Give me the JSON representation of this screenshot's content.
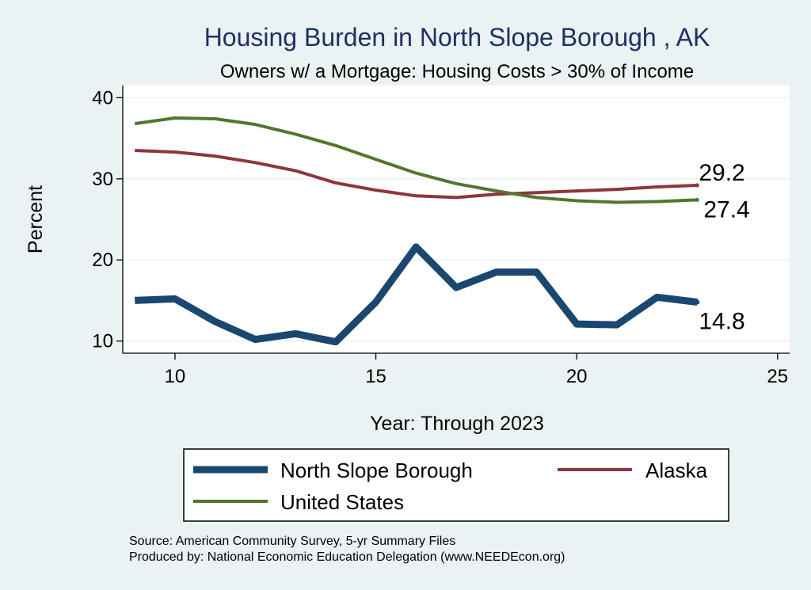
{
  "chart_data": {
    "type": "line",
    "title": "Housing Burden in North Slope Borough , AK",
    "subtitle": "Owners w/ a Mortgage: Housing Costs > 30% of Income",
    "xlabel": "Year: Through 2023",
    "ylabel": "Percent",
    "xlim": [
      8.7,
      25.3
    ],
    "ylim": [
      8.5,
      41.5
    ],
    "x_ticks": [
      10,
      15,
      20,
      25
    ],
    "y_ticks": [
      10,
      20,
      30,
      40
    ],
    "grid": true,
    "legend_position": "bottom",
    "x": [
      9,
      10,
      11,
      12,
      13,
      14,
      15,
      16,
      17,
      18,
      19,
      20,
      21,
      22,
      23
    ],
    "series": [
      {
        "name": "North Slope Borough",
        "color": "#1a476f",
        "values": [
          15.0,
          15.2,
          12.4,
          10.2,
          10.9,
          9.9,
          14.8,
          21.6,
          16.6,
          18.5,
          18.5,
          12.1,
          12.0,
          15.4,
          14.8
        ],
        "end_label": "14.8"
      },
      {
        "name": "Alaska",
        "color": "#90353b",
        "values": [
          33.5,
          33.3,
          32.8,
          32.0,
          31.0,
          29.5,
          28.6,
          27.9,
          27.7,
          28.1,
          28.3,
          28.5,
          28.7,
          29.0,
          29.2
        ],
        "end_label": "29.2"
      },
      {
        "name": "United States",
        "color": "#55752f",
        "values": [
          36.8,
          37.5,
          37.4,
          36.7,
          35.5,
          34.1,
          32.4,
          30.7,
          29.4,
          28.5,
          27.7,
          27.3,
          27.1,
          27.2,
          27.4
        ],
        "end_label": "27.4"
      }
    ]
  },
  "legend": {
    "items": [
      {
        "label": "North Slope Borough",
        "color": "#1a476f"
      },
      {
        "label": "Alaska",
        "color": "#90353b"
      },
      {
        "label": "United States",
        "color": "#55752f"
      }
    ]
  },
  "footer": {
    "source": "Source: American Community Survey, 5-yr Summary Files",
    "produced": "Produced by: National Economic Education Delegation (www.NEEDEcon.org)"
  },
  "colors": {
    "background": "#eaf2f3",
    "plot_background": "#ffffff",
    "title": "#1e3161",
    "grid": "#eaf2f3"
  }
}
